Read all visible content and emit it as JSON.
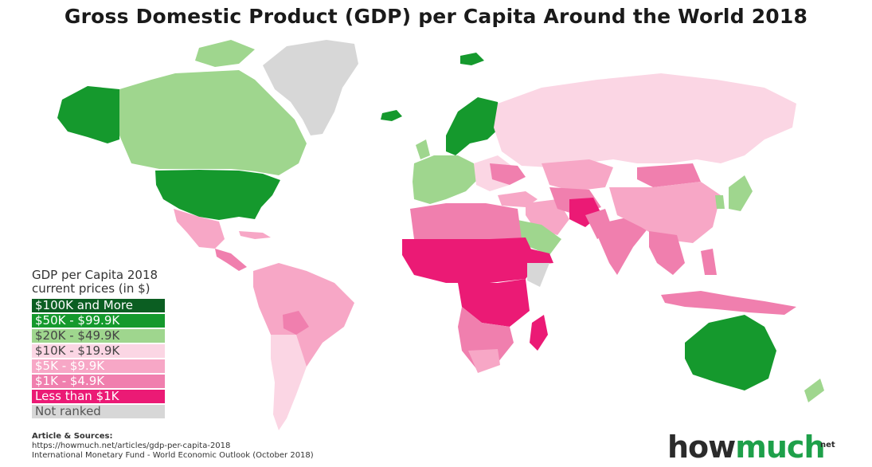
{
  "title": "Gross Domestic Product (GDP) per Capita Around the World 2018",
  "legend": {
    "title_line1": "GDP per Capita 2018",
    "title_line2": "current prices (in $)",
    "items": [
      {
        "label": "$100K and More",
        "color": "#0b5e22",
        "text_color": "#ffffff"
      },
      {
        "label": "$50K - $99.9K",
        "color": "#15992d",
        "text_color": "#ffffff"
      },
      {
        "label": "$20K - $49.9K",
        "color": "#9fd68e",
        "text_color": "#444444"
      },
      {
        "label": "$10K - $19.9K",
        "color": "#fbd6e4",
        "text_color": "#444444"
      },
      {
        "label": "$5K - $9.9K",
        "color": "#f7a7c6",
        "text_color": "#ffffff"
      },
      {
        "label": "$1K - $4.9K",
        "color": "#f07fae",
        "text_color": "#ffffff"
      },
      {
        "label": "Less than $1K",
        "color": "#eb1a75",
        "text_color": "#ffffff"
      },
      {
        "label": "Not ranked",
        "color": "#d7d7d7",
        "text_color": "#555555"
      }
    ]
  },
  "sources": {
    "heading": "Article & Sources:",
    "line1": "https://howmuch.net/articles/gdp-per-capita-2018",
    "line2": "International Monetary Fund - World Economic Outlook (October 2018)"
  },
  "logo": {
    "part1": "how",
    "part2": "much",
    "suffix": "net"
  }
}
